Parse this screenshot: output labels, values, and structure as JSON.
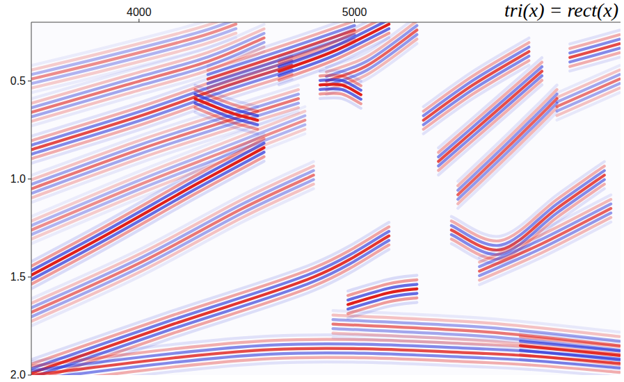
{
  "chart_data": {
    "type": "seismic",
    "title": "tri(x) = rect(x)",
    "xlim": [
      3500,
      6235
    ],
    "ylim": [
      0.2,
      2.0
    ],
    "xticks": [
      4000,
      5000
    ],
    "yticks": [
      0.5,
      {
        "value": 1,
        "label": "1.0"
      },
      1.5,
      {
        "value": 2,
        "label": "2.0"
      }
    ],
    "colors": [
      "#e0201b",
      "#2b35d8"
    ],
    "events": [
      {
        "points": [
          [
            3500,
            0.49
          ],
          [
            3840,
            0.4
          ],
          [
            4260,
            0.28
          ],
          [
            4450,
            0.21
          ]
        ],
        "amplitude": 0.5
      },
      {
        "points": [
          [
            3500,
            0.66
          ],
          [
            3940,
            0.52
          ],
          [
            4320,
            0.4
          ],
          [
            4580,
            0.28
          ]
        ],
        "amplitude": 0.6
      },
      {
        "points": [
          [
            3500,
            0.85
          ],
          [
            4000,
            0.68
          ],
          [
            4420,
            0.52
          ],
          [
            4710,
            0.42
          ]
        ],
        "amplitude": 0.8
      },
      {
        "points": [
          [
            3500,
            1.05
          ],
          [
            4000,
            0.85
          ],
          [
            4390,
            0.71
          ],
          [
            4740,
            0.59
          ]
        ],
        "amplitude": 0.6
      },
      {
        "points": [
          [
            3500,
            1.26
          ],
          [
            4000,
            1.03
          ],
          [
            4420,
            0.85
          ],
          [
            4770,
            0.7
          ]
        ],
        "amplitude": 0.5
      },
      {
        "points": [
          [
            3500,
            1.49
          ],
          [
            3840,
            1.29
          ],
          [
            4260,
            1.03
          ],
          [
            4580,
            0.84
          ]
        ],
        "amplitude": 1.0
      },
      {
        "points": [
          [
            3500,
            1.68
          ],
          [
            4000,
            1.43
          ],
          [
            4480,
            1.15
          ],
          [
            4810,
            0.98
          ]
        ],
        "amplitude": 0.6
      },
      {
        "points": [
          [
            3500,
            1.99
          ],
          [
            4160,
            1.74
          ],
          [
            4810,
            1.5
          ],
          [
            5160,
            1.29
          ]
        ],
        "amplitude": 0.9
      },
      {
        "points": [
          [
            3500,
            2.0
          ],
          [
            4610,
            1.87
          ],
          [
            5610,
            1.89
          ],
          [
            6230,
            1.94
          ]
        ],
        "amplitude": 0.8
      },
      {
        "points": [
          [
            4900,
            1.74
          ],
          [
            5610,
            1.78
          ],
          [
            6230,
            1.85
          ]
        ],
        "amplitude": 0.6
      },
      {
        "points": [
          [
            4970,
            1.64
          ],
          [
            5160,
            1.58
          ],
          [
            5290,
            1.56
          ]
        ],
        "amplitude": 1.0
      },
      {
        "points": [
          [
            4320,
            0.49
          ],
          [
            4710,
            0.35
          ],
          [
            5000,
            0.24
          ]
        ],
        "amplitude": 0.8
      },
      {
        "points": [
          [
            4650,
            0.45
          ],
          [
            4900,
            0.35
          ],
          [
            5160,
            0.21
          ]
        ],
        "amplitude": 1.0
      },
      {
        "points": [
          [
            4870,
            0.5
          ],
          [
            5060,
            0.42
          ],
          [
            5290,
            0.24
          ]
        ],
        "amplitude": 0.7
      },
      {
        "points": [
          [
            4260,
            0.59
          ],
          [
            4420,
            0.66
          ],
          [
            4550,
            0.7
          ]
        ],
        "amplitude": 1.0
      },
      {
        "points": [
          [
            4840,
            0.52
          ],
          [
            4940,
            0.52
          ],
          [
            5030,
            0.57
          ]
        ],
        "amplitude": 1.0
      },
      {
        "points": [
          [
            5320,
            0.7
          ],
          [
            5550,
            0.52
          ],
          [
            5810,
            0.35
          ]
        ],
        "amplitude": 0.8
      },
      {
        "points": [
          [
            5390,
            0.91
          ],
          [
            5610,
            0.7
          ],
          [
            5870,
            0.45
          ]
        ],
        "amplitude": 0.8
      },
      {
        "points": [
          [
            5480,
            1.08
          ],
          [
            5710,
            0.84
          ],
          [
            5940,
            0.59
          ]
        ],
        "amplitude": 0.7
      },
      {
        "points": [
          [
            5450,
            1.26
          ],
          [
            5680,
            1.36
          ],
          [
            5940,
            1.15
          ],
          [
            6160,
            0.98
          ]
        ],
        "amplitude": 0.8
      },
      {
        "points": [
          [
            5580,
            1.47
          ],
          [
            5870,
            1.33
          ],
          [
            6190,
            1.15
          ]
        ],
        "amplitude": 0.7
      },
      {
        "points": [
          [
            6000,
            0.38
          ],
          [
            6230,
            0.31
          ]
        ],
        "amplitude": 0.8
      },
      {
        "points": [
          [
            5940,
            0.63
          ],
          [
            6230,
            0.49
          ]
        ],
        "amplitude": 0.6
      },
      {
        "points": [
          [
            5770,
            1.85
          ],
          [
            6230,
            1.9
          ]
        ],
        "amplitude": 0.9
      }
    ]
  }
}
